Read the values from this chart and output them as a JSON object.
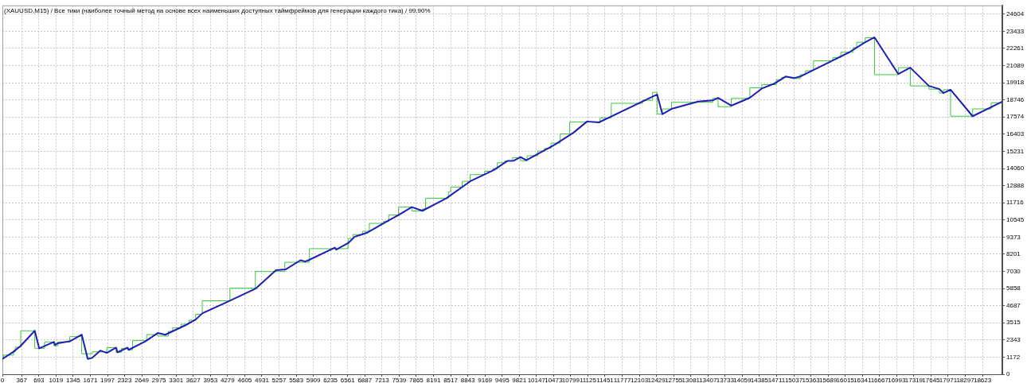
{
  "chart_data": {
    "type": "line",
    "title": "(XAUUSD,M15) / Все тики (наиболее точный метод на основе всех наименьших доступных таймфреймов для генерации каждого тика) / 99.90%",
    "series": [
      {
        "color": "#1e1eb4",
        "x": [
          0,
          196,
          348,
          615,
          700,
          978,
          1002,
          1054,
          1280,
          1507,
          1622,
          1708,
          1859,
          1985,
          2161,
          2187,
          2378,
          2399,
          2716,
          2952,
          3094,
          3496,
          3673,
          3798,
          4252,
          4807,
          5200,
          5381,
          5664,
          5754,
          5815,
          6318,
          6344,
          6570,
          6696,
          6822,
          6923,
          7326,
          7527,
          7780,
          7981,
          8434,
          8888,
          9341,
          9594,
          9719,
          9845,
          9956,
          10399,
          10500,
          10853,
          11110,
          11336,
          12440,
          12541,
          12716,
          13221,
          13497,
          13599,
          13850,
          14203,
          14430,
          14657,
          14884,
          15035,
          15160,
          15739,
          16093,
          16370,
          16571,
          17024,
          17251,
          17605,
          17806,
          17881,
          18017,
          18436,
          19000
        ],
        "values": [
          1050,
          1500,
          1940,
          2970,
          1770,
          2210,
          2000,
          2120,
          2250,
          2710,
          1040,
          1130,
          1620,
          1460,
          1820,
          1500,
          1820,
          1670,
          2250,
          2820,
          2700,
          3380,
          3740,
          4160,
          4910,
          5840,
          7110,
          7160,
          7790,
          7700,
          7790,
          8650,
          8510,
          8960,
          9400,
          9540,
          9660,
          10480,
          10880,
          11420,
          11170,
          12020,
          13180,
          13960,
          14570,
          14590,
          14840,
          14620,
          15490,
          15700,
          16510,
          17270,
          17210,
          19120,
          17770,
          18130,
          18630,
          18710,
          18890,
          18350,
          18890,
          19520,
          19840,
          20340,
          20230,
          20340,
          21370,
          22000,
          22630,
          23020,
          20510,
          20950,
          19700,
          19480,
          19210,
          19440,
          17630,
          18620
        ]
      },
      {
        "type": "step",
        "color": "#3cc83c",
        "x": [
          0,
          20,
          212,
          246,
          348,
          615,
          801,
          978,
          1054,
          1280,
          1507,
          1708,
          1985,
          2161,
          2263,
          2378,
          2474,
          2741,
          2952,
          3154,
          3235,
          3396,
          3547,
          3673,
          3798,
          4323,
          4807,
          5366,
          5834,
          6570,
          6661,
          6847,
          6973,
          7240,
          7341,
          7527,
          7780,
          7981,
          8041,
          8475,
          8520,
          8737,
          8888,
          9164,
          9315,
          9401,
          9542,
          9693,
          9845,
          9971,
          10173,
          10299,
          10425,
          10600,
          10777,
          11356,
          11570,
          12163,
          12354,
          12440,
          12541,
          12716,
          13497,
          13599,
          13850,
          14203,
          14430,
          14707,
          14808,
          15035,
          15160,
          15261,
          15412,
          15780,
          15931,
          16167,
          16232,
          16395,
          16571,
          17024,
          17251,
          17605,
          17806,
          17881,
          18017,
          18436,
          18788,
          19000
        ],
        "values": [
          1050,
          1310,
          1530,
          1850,
          2970,
          1770,
          2210,
          1940,
          2210,
          2570,
          1400,
          1530,
          1820,
          1500,
          1770,
          1670,
          2300,
          2710,
          2610,
          2930,
          3170,
          3420,
          3690,
          4100,
          5020,
          5880,
          7020,
          7650,
          8580,
          9270,
          9540,
          9770,
          10310,
          10430,
          10880,
          11420,
          11150,
          11290,
          12020,
          12470,
          12790,
          13180,
          13640,
          13870,
          14050,
          14450,
          14570,
          14800,
          14590,
          14930,
          15250,
          15430,
          15790,
          16420,
          17230,
          17520,
          18510,
          18720,
          19260,
          17770,
          18130,
          18580,
          18850,
          18280,
          18850,
          19570,
          19790,
          20110,
          20290,
          20200,
          20470,
          20740,
          21420,
          21640,
          22000,
          22320,
          22680,
          22990,
          20470,
          20950,
          19700,
          19480,
          19210,
          19440,
          17630,
          18130,
          18550,
          18550
        ]
      }
    ],
    "xlim": [
      0,
      19000
    ],
    "xticks": [
      0,
      367,
      693,
      1019,
      1345,
      1671,
      1997,
      2323,
      2649,
      2975,
      3301,
      3627,
      3953,
      4279,
      4605,
      4931,
      5257,
      5583,
      5909,
      6235,
      6561,
      6887,
      7213,
      7539,
      7865,
      8191,
      8517,
      8843,
      9169,
      9495,
      9821,
      10147,
      10473,
      10799,
      11125,
      11451,
      11777,
      12103,
      12429,
      12755,
      13081,
      13407,
      13733,
      14059,
      14385,
      14711,
      15037,
      15363,
      15689,
      16015,
      16341,
      16667,
      16993,
      17319,
      17645,
      17971,
      18297,
      18623
    ],
    "ylim": [
      0,
      25200
    ],
    "yticks": [
      0,
      1172,
      2343,
      3515,
      4687,
      5858,
      7030,
      8201,
      9373,
      10545,
      11716,
      12888,
      14060,
      15231,
      16403,
      17574,
      18746,
      19918,
      21089,
      22261,
      23433,
      24604
    ],
    "grid": true,
    "marker": "none"
  }
}
